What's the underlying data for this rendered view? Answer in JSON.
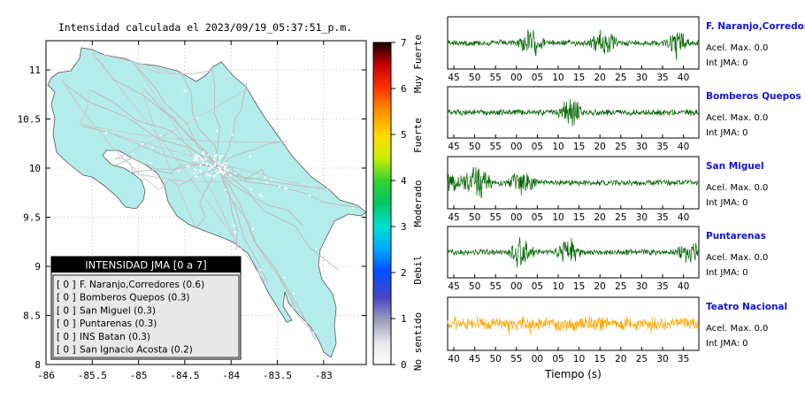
{
  "map": {
    "title": "Intensidad calculada el 2023/09/19_05:37:51_p.m.",
    "x_ticks": [
      "-86",
      "-85.5",
      "-85",
      "-84.5",
      "-84",
      "-83.5",
      "-83"
    ],
    "y_ticks": [
      "11",
      "10.5",
      "10",
      "9.5",
      "9",
      "8.5",
      "8"
    ],
    "land_color": "#b4ecec"
  },
  "scale": {
    "ticks": [
      "0",
      "1",
      "2",
      "3",
      "4",
      "5",
      "6",
      "7"
    ],
    "labels": [
      "No sentido",
      "Debil",
      "Moderado",
      "Fuerte",
      "Muy Fuerte"
    ]
  },
  "legend": {
    "header": "INTENSIDAD JMA [0 a 7]",
    "rows": [
      {
        "badge": "[ 0 ]",
        "text": "F. Naranjo,Corredores (0.6)"
      },
      {
        "badge": "[ 0 ]",
        "text": "Bomberos Quepos (0.3)"
      },
      {
        "badge": "[ 0 ]",
        "text": "San Miguel (0.3)"
      },
      {
        "badge": "[ 0 ]",
        "text": "Puntarenas (0.3)"
      },
      {
        "badge": "[ 0 ]",
        "text": "INS Batan (0.3)"
      },
      {
        "badge": "[ 0 ]",
        "text": "San Ignacio Acosta (0.2)"
      }
    ]
  },
  "stations": [
    {
      "name": "F. Naranjo,Corredores",
      "acel": "Acel. Max. 0.0",
      "jma": "Int JMA: 0",
      "color": "#006400",
      "ticks": [
        "45",
        "50",
        "55",
        "00",
        "05",
        "10",
        "15",
        "20",
        "25",
        "30",
        "35",
        "40"
      ],
      "spikes": [
        0.33,
        0.62,
        0.91
      ]
    },
    {
      "name": "Bomberos Quepos",
      "acel": "Acel. Max. 0.0",
      "jma": "Int JMA: 0",
      "color": "#006400",
      "ticks": [
        "45",
        "50",
        "55",
        "00",
        "05",
        "10",
        "15",
        "20",
        "25",
        "30",
        "35",
        "40"
      ],
      "spikes": [
        0.49
      ]
    },
    {
      "name": "San Miguel",
      "acel": "Acel. Max. 0.0",
      "jma": "Int JMA: 0",
      "color": "#006400",
      "ticks": [
        "45",
        "50",
        "55",
        "00",
        "05",
        "10",
        "15",
        "20",
        "25",
        "30",
        "35",
        "40"
      ],
      "spikes": [
        0.12,
        0.3
      ]
    },
    {
      "name": "Puntarenas",
      "acel": "Acel. Max. 0.0",
      "jma": "Int JMA: 0",
      "color": "#006400",
      "ticks": [
        "45",
        "50",
        "55",
        "00",
        "05",
        "10",
        "15",
        "20",
        "25",
        "30",
        "35",
        "40"
      ],
      "spikes": [
        0.29,
        0.48,
        0.97
      ]
    },
    {
      "name": "Teatro Nacional",
      "acel": "Acel. Max. 0.0",
      "jma": "Int JMA: 0",
      "color": "#ffa500",
      "ticks": [
        "40",
        "45",
        "50",
        "55",
        "00",
        "05",
        "10",
        "15",
        "20",
        "25",
        "30",
        "35"
      ],
      "spikes": [
        0.45,
        0.55
      ]
    }
  ],
  "xlabel": "Tiempo (s)"
}
